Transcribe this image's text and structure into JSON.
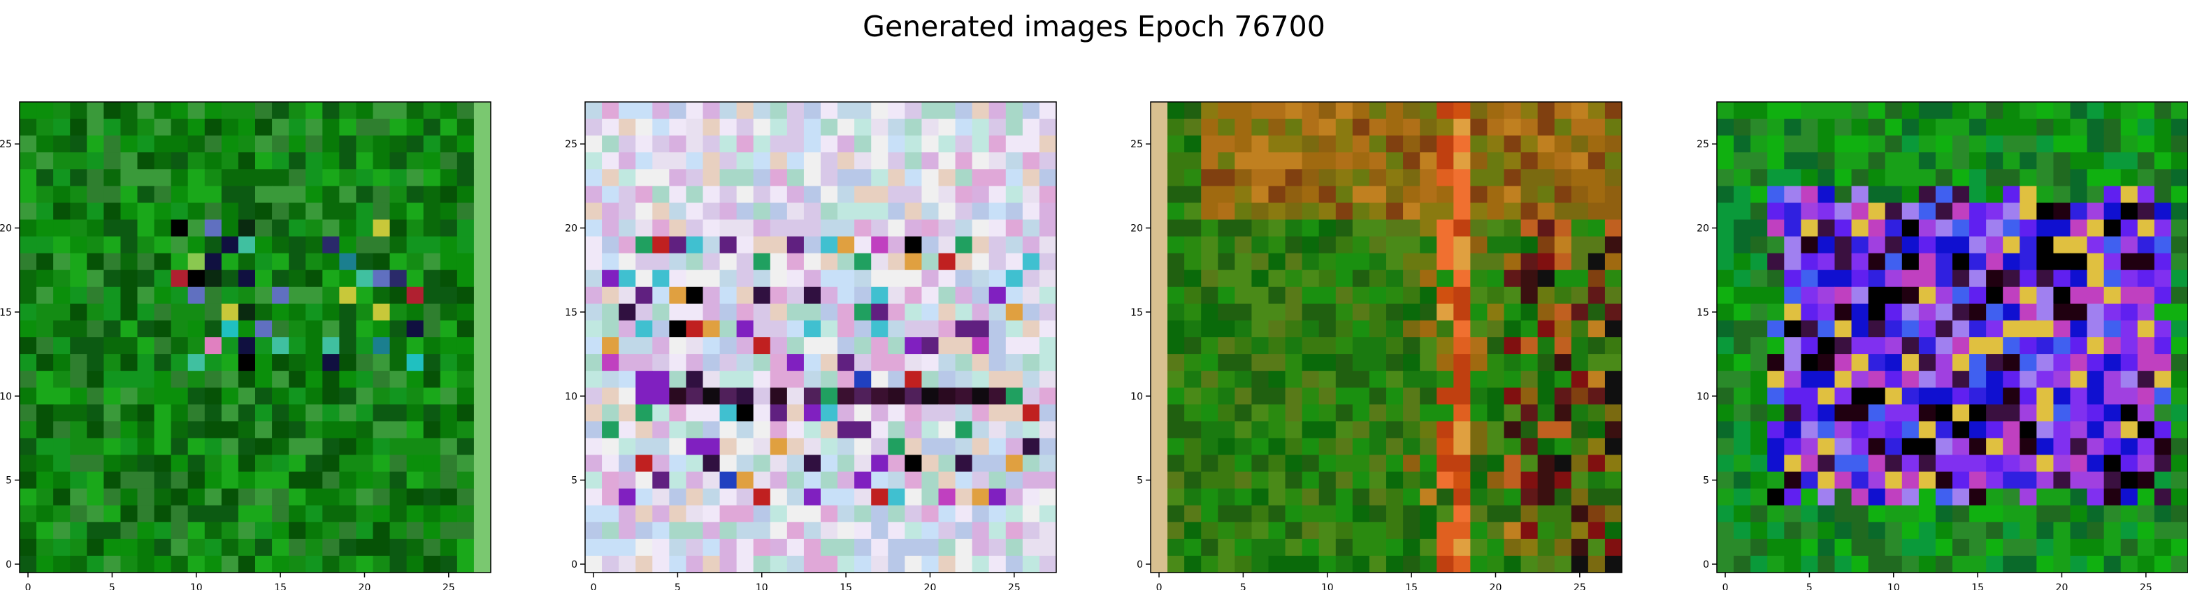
{
  "title": "Generated images Epoch 76700",
  "chart_data": [
    {
      "type": "heatmap",
      "xlabel": "",
      "ylabel": "",
      "xlim": [
        -0.5,
        27.5
      ],
      "ylim": [
        27.5,
        -0.5
      ],
      "xticks": [
        0,
        5,
        10,
        15,
        20,
        25
      ],
      "yticks": [
        0,
        5,
        10,
        15,
        20,
        25
      ],
      "grid": false,
      "rows": 28,
      "cols": 28,
      "palette": [
        "#0a6a0a",
        "#087a08",
        "#0b8f0b",
        "#148c14",
        "#1aa81a",
        "#2f7f2f",
        "#0c5a12",
        "#3a9a3a",
        "#065206",
        "#12961f"
      ],
      "accent_palette": [
        "#0a2a10",
        "#1b7f8f",
        "#c8c83a",
        "#b02030",
        "#e080c0",
        "#2a2a6a",
        "#40c0a0",
        "#6070c0",
        "#000000",
        "#8ac850",
        "#20c0c0",
        "#101040"
      ],
      "accent_region": {
        "rows": [
          7,
          15
        ],
        "cols": [
          9,
          23
        ]
      },
      "edge_colors": {
        "right": "#7ac870"
      },
      "seed": 11
    },
    {
      "type": "heatmap",
      "xlabel": "",
      "ylabel": "",
      "xlim": [
        -0.5,
        27.5
      ],
      "ylim": [
        27.5,
        -0.5
      ],
      "xticks": [
        0,
        5,
        10,
        15,
        20,
        25
      ],
      "yticks": [
        0,
        5,
        10,
        15,
        20,
        25
      ],
      "grid": false,
      "rows": 28,
      "cols": 28,
      "palette": [
        "#d8c8e8",
        "#e8e0f0",
        "#c0d8e8",
        "#f0e8f8",
        "#e0a8d8",
        "#a8d8c8",
        "#c8e0f8",
        "#f0f0f0",
        "#d8b0e0",
        "#b8c8e8",
        "#e8d0c0",
        "#c0e8e0"
      ],
      "accent_palette": [
        "#000000",
        "#301040",
        "#c02020",
        "#2040c0",
        "#40c0d0",
        "#8020c0",
        "#e0a040",
        "#c040c0",
        "#20a060",
        "#602080"
      ],
      "accent_region": {
        "rows": [
          8,
          23
        ],
        "cols": [
          1,
          26
        ]
      },
      "dark_band_row": 17,
      "seed": 23
    },
    {
      "type": "heatmap",
      "xlabel": "",
      "ylabel": "",
      "xlim": [
        -0.5,
        27.5
      ],
      "ylim": [
        27.5,
        -0.5
      ],
      "xticks": [
        0,
        5,
        10,
        15,
        20,
        25
      ],
      "yticks": [
        0,
        5,
        10,
        15,
        20,
        25
      ],
      "grid": false,
      "rows": 28,
      "cols": 28,
      "palette": [
        "#1a7a10",
        "#2a8a10",
        "#0a6a0a",
        "#3a7a10",
        "#4a8a18",
        "#206010",
        "#1a9010",
        "#587a18"
      ],
      "top_palette": [
        "#a06a10",
        "#8a7a10",
        "#b07018",
        "#7a6a10",
        "#c08020",
        "#906010",
        "#6a7a10",
        "#804010"
      ],
      "stripe_palette": [
        "#e06020",
        "#f07030",
        "#d05010",
        "#e0a040",
        "#c04010"
      ],
      "accent_palette": [
        "#3a1010",
        "#801010",
        "#c06020",
        "#101010",
        "#601818"
      ],
      "stripe_col": 18,
      "left_edge_color": "#d8c090",
      "seed": 37
    },
    {
      "type": "heatmap",
      "xlabel": "",
      "ylabel": "",
      "xlim": [
        -0.5,
        27.5
      ],
      "ylim": [
        27.5,
        -0.5
      ],
      "xticks": [
        0,
        5,
        10,
        15,
        20,
        25
      ],
      "yticks": [
        0,
        5,
        10,
        15,
        20,
        25
      ],
      "grid": false,
      "rows": 28,
      "cols": 28,
      "palette": [
        "#0a8a0a",
        "#18a018",
        "#0a6a2a",
        "#2a8a2a",
        "#10b010",
        "#206a20",
        "#0a9a3a"
      ],
      "accent_palette": [
        "#3020e0",
        "#6020f0",
        "#1010d0",
        "#8030f0",
        "#a040e0",
        "#200010",
        "#4060f0",
        "#c040c0",
        "#e0c040",
        "#000000",
        "#a080f0",
        "#3a1040"
      ],
      "accent_region": {
        "rows": [
          5,
          23
        ],
        "cols": [
          3,
          26
        ]
      },
      "seed": 53
    }
  ]
}
